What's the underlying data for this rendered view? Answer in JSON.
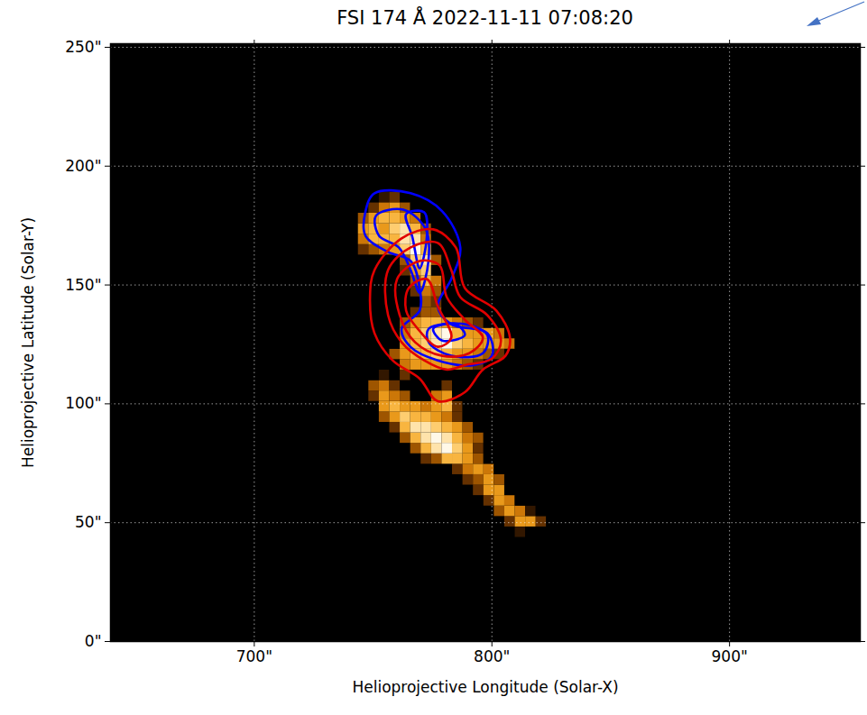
{
  "chart_data": {
    "type": "image",
    "title": "FSI 174 Å 2022-11-11 07:08:20",
    "x_label": "Helioprojective Longitude (Solar-X)",
    "y_label": "Helioprojective Latitude (Solar-Y)",
    "xlim": [
      639.5,
      955
    ],
    "ylim": [
      0,
      251.5
    ],
    "xticks": [
      {
        "value": 700,
        "label": "700\""
      },
      {
        "value": 800,
        "label": "800\""
      },
      {
        "value": 900,
        "label": "900\""
      }
    ],
    "yticks": [
      {
        "value": 0,
        "label": "0\""
      },
      {
        "value": 50,
        "label": "50\""
      },
      {
        "value": 100,
        "label": "100\""
      },
      {
        "value": 150,
        "label": "150\""
      },
      {
        "value": 200,
        "label": "200\""
      },
      {
        "value": 250,
        "label": "250\""
      }
    ],
    "grid": true,
    "image": {
      "cell_size": 4.4,
      "x": [
        746,
        750.4,
        754.8,
        759.2,
        763.6,
        768,
        772.4,
        776.8,
        781.2,
        785.6,
        790,
        794.4,
        798.8,
        803.2,
        807.6,
        812,
        816.4,
        820.8,
        825.2
      ],
      "y": [
        46,
        50.4,
        54.8,
        59.2,
        63.6,
        68,
        72.4,
        76.8,
        81.2,
        85.6,
        90,
        94.4,
        98.8,
        103.2,
        107.6,
        112,
        116.4,
        120.8,
        125.2,
        129.6,
        134,
        138.4,
        142.8,
        147.2,
        151.6,
        156,
        160.4,
        164.8,
        169.2,
        173.6,
        178,
        182.4,
        186.8
      ],
      "values": [
        [
          0,
          0,
          0,
          0,
          0,
          0,
          0,
          0,
          0,
          0,
          0,
          0,
          0,
          0,
          0,
          1,
          0,
          0,
          0
        ],
        [
          0,
          0,
          0,
          0,
          0,
          0,
          0,
          0,
          0,
          0,
          0,
          0,
          0,
          0,
          2,
          5,
          5,
          2,
          0
        ],
        [
          0,
          0,
          0,
          0,
          0,
          0,
          0,
          0,
          0,
          0,
          0,
          0,
          0,
          3,
          5,
          4,
          1,
          0,
          0
        ],
        [
          0,
          0,
          0,
          0,
          0,
          0,
          0,
          0,
          0,
          0,
          0,
          0,
          2,
          5,
          4,
          0,
          0,
          0,
          0
        ],
        [
          0,
          0,
          0,
          0,
          0,
          0,
          0,
          0,
          0,
          0,
          0,
          2,
          5,
          5,
          0,
          0,
          0,
          0,
          0
        ],
        [
          0,
          0,
          0,
          0,
          0,
          0,
          0,
          0,
          0,
          0,
          2,
          3,
          5,
          3,
          0,
          0,
          0,
          0,
          0
        ],
        [
          0,
          0,
          0,
          0,
          0,
          0,
          0,
          0,
          0,
          2,
          4,
          5,
          4,
          0,
          0,
          0,
          0,
          0,
          0
        ],
        [
          0,
          0,
          0,
          0,
          0,
          0,
          2,
          3,
          6,
          6,
          5,
          3,
          0,
          0,
          0,
          0,
          0,
          0,
          0
        ],
        [
          0,
          0,
          0,
          0,
          0,
          3,
          6,
          8,
          9,
          7,
          5,
          2,
          0,
          0,
          0,
          0,
          0,
          0,
          0
        ],
        [
          0,
          0,
          0,
          0,
          3,
          6,
          8,
          9,
          8,
          6,
          4,
          3,
          0,
          0,
          0,
          0,
          0,
          0,
          0
        ],
        [
          0,
          0,
          0,
          2,
          6,
          8,
          8,
          7,
          6,
          5,
          3,
          0,
          0,
          0,
          0,
          0,
          0,
          0,
          0
        ],
        [
          0,
          0,
          3,
          5,
          7,
          6,
          6,
          5,
          4,
          2,
          0,
          0,
          0,
          0,
          0,
          0,
          0,
          0,
          0
        ],
        [
          0,
          0,
          5,
          6,
          5,
          5,
          4,
          5,
          6,
          2,
          0,
          0,
          0,
          0,
          0,
          0,
          0,
          0,
          0
        ],
        [
          0,
          2,
          5,
          4,
          3,
          0,
          0,
          4,
          5,
          0,
          0,
          0,
          0,
          0,
          0,
          0,
          0,
          0,
          0
        ],
        [
          0,
          3,
          4,
          2,
          0,
          0,
          0,
          0,
          2,
          0,
          0,
          0,
          0,
          0,
          0,
          0,
          0,
          0,
          0
        ],
        [
          0,
          0,
          1,
          0,
          2,
          0,
          0,
          0,
          0,
          0,
          0,
          0,
          0,
          0,
          0,
          0,
          0,
          0,
          0
        ],
        [
          0,
          0,
          0,
          0,
          4,
          5,
          5,
          5,
          5,
          4,
          3,
          2,
          0,
          0,
          0,
          0,
          0,
          0,
          0
        ],
        [
          0,
          0,
          0,
          3,
          5,
          6,
          6,
          7,
          6,
          5,
          5,
          4,
          3,
          2,
          0,
          0,
          0,
          0,
          0
        ],
        [
          0,
          0,
          0,
          0,
          5,
          6,
          7,
          8,
          9,
          7,
          6,
          5,
          5,
          5,
          4,
          0,
          0,
          0,
          0
        ],
        [
          0,
          0,
          0,
          0,
          4,
          6,
          7,
          8,
          9,
          6,
          5,
          5,
          5,
          4,
          0,
          0,
          0,
          0,
          0
        ],
        [
          0,
          0,
          0,
          0,
          3,
          5,
          6,
          6,
          5,
          4,
          3,
          2,
          0,
          0,
          0,
          0,
          0,
          0,
          0
        ],
        [
          0,
          0,
          0,
          0,
          0,
          2,
          3,
          3,
          0,
          0,
          0,
          0,
          0,
          0,
          0,
          0,
          0,
          0,
          0
        ],
        [
          0,
          0,
          0,
          0,
          0,
          0,
          3,
          2,
          0,
          0,
          0,
          0,
          0,
          0,
          0,
          0,
          0,
          0,
          0
        ],
        [
          0,
          0,
          0,
          0,
          0,
          2,
          4,
          3,
          0,
          0,
          0,
          0,
          0,
          0,
          0,
          0,
          0,
          0,
          0
        ],
        [
          0,
          0,
          0,
          0,
          0,
          3,
          6,
          4,
          0,
          0,
          0,
          0,
          0,
          0,
          0,
          0,
          0,
          0,
          0
        ],
        [
          0,
          0,
          0,
          0,
          2,
          5,
          7,
          0,
          0,
          0,
          0,
          0,
          0,
          0,
          0,
          0,
          0,
          0,
          0
        ],
        [
          0,
          0,
          0,
          0,
          3,
          7,
          8,
          3,
          0,
          0,
          0,
          0,
          0,
          0,
          0,
          0,
          0,
          0,
          0
        ],
        [
          2,
          3,
          4,
          5,
          7,
          9,
          6,
          0,
          0,
          0,
          0,
          0,
          0,
          0,
          0,
          0,
          0,
          0,
          0
        ],
        [
          4,
          6,
          6,
          6,
          8,
          8,
          4,
          0,
          0,
          0,
          0,
          0,
          0,
          0,
          0,
          0,
          0,
          0,
          0
        ],
        [
          5,
          6,
          5,
          7,
          8,
          6,
          3,
          0,
          0,
          0,
          0,
          0,
          0,
          0,
          0,
          0,
          0,
          0,
          0
        ],
        [
          3,
          5,
          6,
          6,
          5,
          4,
          0,
          0,
          0,
          0,
          0,
          0,
          0,
          0,
          0,
          0,
          0,
          0,
          0
        ],
        [
          0,
          2,
          4,
          5,
          3,
          0,
          0,
          0,
          0,
          0,
          0,
          0,
          0,
          0,
          0,
          0,
          0,
          0,
          0
        ],
        [
          0,
          0,
          1,
          2,
          0,
          0,
          0,
          0,
          0,
          0,
          0,
          0,
          0,
          0,
          0,
          0,
          0,
          0,
          0
        ]
      ]
    },
    "contours": [
      {
        "color": "#0000ff",
        "lines": [
          [
            [
              750.6,
              188.6
            ],
            [
              765.8,
              188.6
            ],
            [
              779.1,
              181.0
            ],
            [
              786.7,
              165.8
            ],
            [
              782.9,
              152.5
            ],
            [
              777.2,
              141.1
            ],
            [
              782.9,
              133.5
            ],
            [
              798.1,
              129.7
            ],
            [
              800.0,
              120.2
            ],
            [
              792.4,
              116.3
            ],
            [
              777.2,
              118.3
            ],
            [
              765.8,
              123.9
            ],
            [
              762.0,
              131.6
            ],
            [
              769.6,
              139.2
            ],
            [
              769.6,
              148.7
            ],
            [
              765.8,
              160.1
            ],
            [
              756.3,
              163.9
            ],
            [
              746.8,
              170.7
            ],
            [
              746.8,
              181.0
            ]
          ],
          [
            [
              751.2,
              179.1
            ],
            [
              762.7,
              181.7
            ],
            [
              772.2,
              173.4
            ],
            [
              773.3,
              160.1
            ],
            [
              769.6,
              146.8
            ],
            [
              765.8,
              156.3
            ],
            [
              760.8,
              165.8
            ],
            [
              752.5,
              170.7
            ]
          ],
          [
            [
              773.4,
              131.6
            ],
            [
              788.6,
              133.5
            ],
            [
              798.1,
              128.9
            ],
            [
              796.2,
              121.3
            ],
            [
              782.9,
              120.2
            ],
            [
              773.4,
              125.9
            ]
          ],
          [
            [
              763.9,
              179.8
            ],
            [
              771.5,
              180.6
            ],
            [
              772.6,
              170.3
            ],
            [
              769.6,
              157.0
            ],
            [
              766.5,
              170.3
            ]
          ],
          [
            [
              775.3,
              131.6
            ],
            [
              784.8,
              133.5
            ],
            [
              788.6,
              128.9
            ],
            [
              779.1,
              126.6
            ]
          ]
        ]
      },
      {
        "color": "#e00000",
        "lines": [
          [
            [
              750.6,
              156.3
            ],
            [
              762.0,
              169.6
            ],
            [
              775.3,
              173.4
            ],
            [
              784.8,
              165.8
            ],
            [
              788.6,
              148.7
            ],
            [
              801.9,
              139.2
            ],
            [
              807.6,
              127.8
            ],
            [
              805.7,
              120.2
            ],
            [
              796.2,
              114.4
            ],
            [
              788.6,
              104.9
            ],
            [
              777.2,
              101.1
            ],
            [
              769.6,
              110.6
            ],
            [
              758.2,
              118.3
            ],
            [
              750.6,
              129.7
            ],
            [
              748.7,
              144.9
            ]
          ],
          [
            [
              756.3,
              156.3
            ],
            [
              765.8,
              165.8
            ],
            [
              777.2,
              167.7
            ],
            [
              782.9,
              156.3
            ],
            [
              786.7,
              144.9
            ],
            [
              798.1,
              137.3
            ],
            [
              803.8,
              126.6
            ],
            [
              800.0,
              119.0
            ],
            [
              788.6,
              116.3
            ],
            [
              781.0,
              114.4
            ],
            [
              771.5,
              118.3
            ],
            [
              762.0,
              125.9
            ],
            [
              756.3,
              137.3
            ]
          ],
          [
            [
              760.1,
              152.5
            ],
            [
              769.6,
              160.1
            ],
            [
              778.0,
              158.2
            ],
            [
              781.0,
              144.9
            ],
            [
              788.6,
              135.4
            ],
            [
              796.2,
              127.8
            ],
            [
              790.5,
              121.3
            ],
            [
              779.1,
              120.2
            ],
            [
              767.7,
              125.9
            ],
            [
              761.2,
              137.3
            ]
          ],
          [
            [
              765.0,
              148.7
            ],
            [
              772.6,
              152.5
            ],
            [
              777.2,
              141.1
            ],
            [
              782.9,
              127.8
            ],
            [
              777.2,
              124.0
            ],
            [
              768.8,
              131.6
            ],
            [
              763.9,
              139.2
            ]
          ]
        ]
      }
    ]
  }
}
